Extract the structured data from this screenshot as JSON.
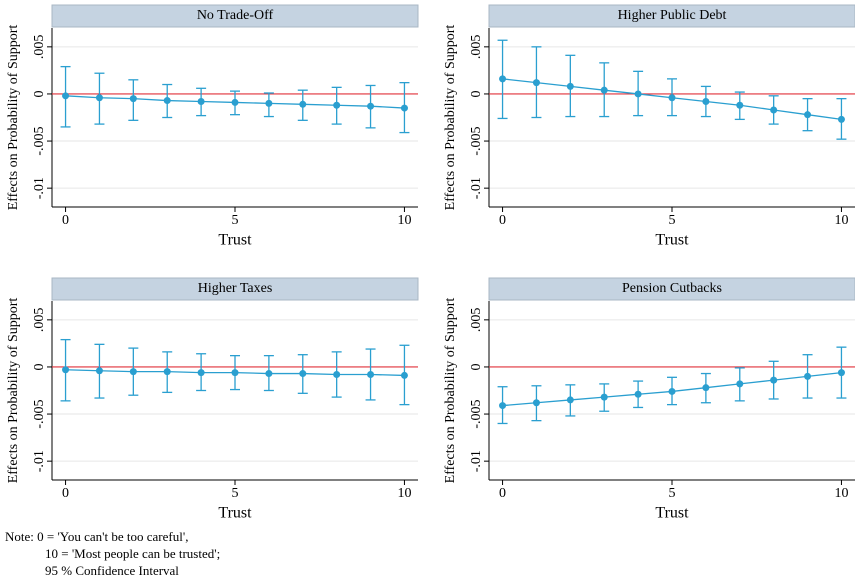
{
  "chart_data": [
    {
      "type": "line",
      "title": "No Trade-Off",
      "x_label": "Trust",
      "y_label": "Effects on Probability of Support",
      "x": [
        0,
        1,
        2,
        3,
        4,
        5,
        6,
        7,
        8,
        9,
        10
      ],
      "xlim": [
        -0.4,
        10.4
      ],
      "xticks": [
        0,
        5,
        10
      ],
      "ylim": [
        -0.012,
        0.007
      ],
      "yticks": [
        {
          "value": 0.005,
          "label": ".005"
        },
        0,
        {
          "value": -0.005,
          "label": "-.005"
        },
        {
          "value": -0.01,
          "label": "-.01"
        }
      ],
      "grid": true,
      "reference_line": 0,
      "reference_color": "#e0303a",
      "series": [
        {
          "color": "#2a9fd0",
          "values": [
            -0.0002,
            -0.0004,
            -0.0005,
            -0.0007,
            -0.0008,
            -0.0009,
            -0.001,
            -0.0011,
            -0.0012,
            -0.0013,
            -0.0015
          ],
          "ci_upper": [
            0.0029,
            0.0022,
            0.0015,
            0.001,
            0.0006,
            0.0003,
            0.0001,
            0.0004,
            0.0007,
            0.0009,
            0.0012
          ],
          "ci_lower": [
            -0.0035,
            -0.0032,
            -0.0028,
            -0.0025,
            -0.0023,
            -0.0022,
            -0.0024,
            -0.0028,
            -0.0032,
            -0.0036,
            -0.0041
          ]
        }
      ]
    },
    {
      "type": "line",
      "title": "Higher Public Debt",
      "x_label": "Trust",
      "y_label": "Effects on Probability of Support",
      "x": [
        0,
        1,
        2,
        3,
        4,
        5,
        6,
        7,
        8,
        9,
        10
      ],
      "xlim": [
        -0.4,
        10.4
      ],
      "xticks": [
        0,
        5,
        10
      ],
      "ylim": [
        -0.012,
        0.007
      ],
      "yticks": [
        {
          "value": 0.005,
          "label": ".005"
        },
        0,
        {
          "value": -0.005,
          "label": "-.005"
        },
        {
          "value": -0.01,
          "label": "-.01"
        }
      ],
      "grid": true,
      "reference_line": 0,
      "reference_color": "#e0303a",
      "series": [
        {
          "color": "#2a9fd0",
          "values": [
            0.0016,
            0.0012,
            0.0008,
            0.0004,
            0.0,
            -0.0004,
            -0.0008,
            -0.0012,
            -0.0017,
            -0.0022,
            -0.0027
          ],
          "ci_upper": [
            0.0057,
            0.005,
            0.0041,
            0.0033,
            0.0024,
            0.0016,
            0.0008,
            0.0002,
            -0.0002,
            -0.0005,
            -0.0005
          ],
          "ci_lower": [
            -0.0026,
            -0.0025,
            -0.0024,
            -0.0024,
            -0.0023,
            -0.0023,
            -0.0024,
            -0.0027,
            -0.0032,
            -0.0039,
            -0.0048
          ]
        }
      ]
    },
    {
      "type": "line",
      "title": "Higher Taxes",
      "x_label": "Trust",
      "y_label": "Effects on Probability of Support",
      "x": [
        0,
        1,
        2,
        3,
        4,
        5,
        6,
        7,
        8,
        9,
        10
      ],
      "xlim": [
        -0.4,
        10.4
      ],
      "xticks": [
        0,
        5,
        10
      ],
      "ylim": [
        -0.012,
        0.007
      ],
      "yticks": [
        {
          "value": 0.005,
          "label": ".005"
        },
        0,
        {
          "value": -0.005,
          "label": "-.005"
        },
        {
          "value": -0.01,
          "label": "-.01"
        }
      ],
      "grid": true,
      "reference_line": 0,
      "reference_color": "#e0303a",
      "series": [
        {
          "color": "#2a9fd0",
          "values": [
            -0.0003,
            -0.0004,
            -0.0005,
            -0.0005,
            -0.0006,
            -0.0006,
            -0.0007,
            -0.0007,
            -0.0008,
            -0.0008,
            -0.0009
          ],
          "ci_upper": [
            0.0029,
            0.0024,
            0.002,
            0.0016,
            0.0014,
            0.0012,
            0.0012,
            0.0013,
            0.0016,
            0.0019,
            0.0023
          ],
          "ci_lower": [
            -0.0036,
            -0.0033,
            -0.003,
            -0.0027,
            -0.0025,
            -0.0024,
            -0.0025,
            -0.0028,
            -0.0032,
            -0.0035,
            -0.004
          ]
        }
      ]
    },
    {
      "type": "line",
      "title": "Pension Cutbacks",
      "x_label": "Trust",
      "y_label": "Effects on Probability of Support",
      "x": [
        0,
        1,
        2,
        3,
        4,
        5,
        6,
        7,
        8,
        9,
        10
      ],
      "xlim": [
        -0.4,
        10.4
      ],
      "xticks": [
        0,
        5,
        10
      ],
      "ylim": [
        -0.012,
        0.007
      ],
      "yticks": [
        {
          "value": 0.005,
          "label": ".005"
        },
        0,
        {
          "value": -0.005,
          "label": "-.005"
        },
        {
          "value": -0.01,
          "label": "-.01"
        }
      ],
      "grid": true,
      "reference_line": 0,
      "reference_color": "#e0303a",
      "series": [
        {
          "color": "#2a9fd0",
          "values": [
            -0.0041,
            -0.0038,
            -0.0035,
            -0.0032,
            -0.0029,
            -0.0026,
            -0.0022,
            -0.0018,
            -0.0014,
            -0.001,
            -0.0006
          ],
          "ci_upper": [
            -0.0021,
            -0.002,
            -0.0019,
            -0.0018,
            -0.0015,
            -0.0011,
            -0.0007,
            -0.0001,
            0.0006,
            0.0013,
            0.0021
          ],
          "ci_lower": [
            -0.006,
            -0.0057,
            -0.0052,
            -0.0047,
            -0.0043,
            -0.004,
            -0.0038,
            -0.0036,
            -0.0034,
            -0.0033,
            -0.0033
          ]
        }
      ]
    }
  ],
  "note": [
    "Note:  0 = 'You can't be too careful',",
    "10 = 'Most people can be trusted';",
    "95 % Confidence Interval"
  ]
}
